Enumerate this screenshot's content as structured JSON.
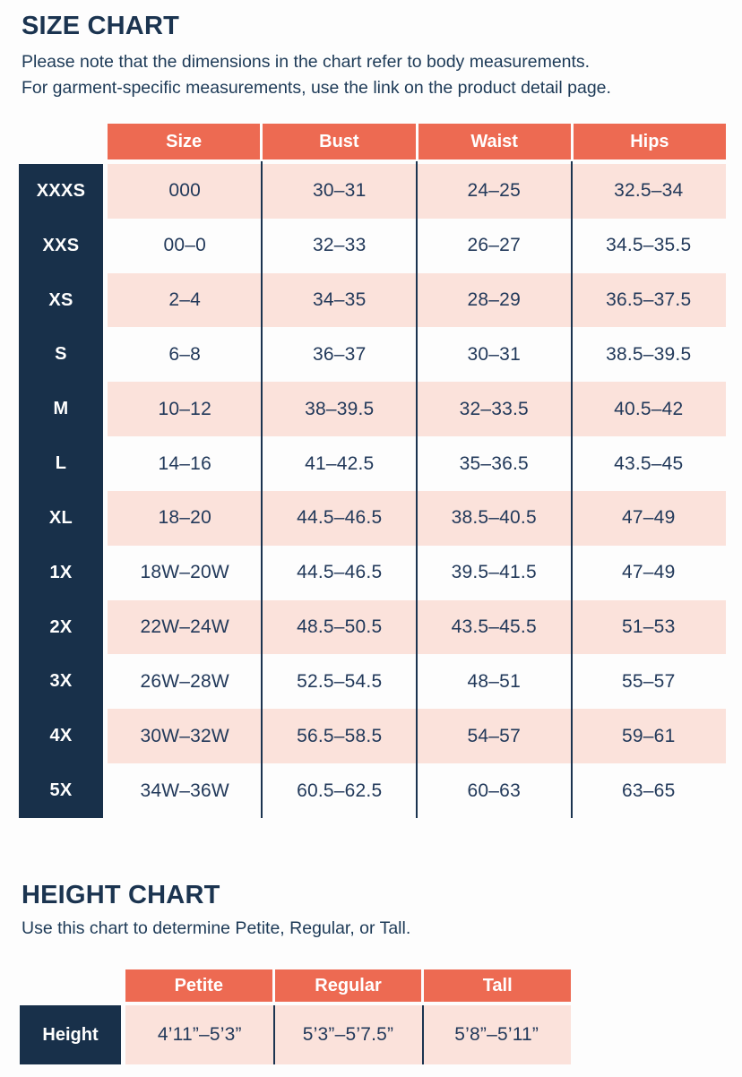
{
  "colors": {
    "header_orange": "#ED6A52",
    "label_navy": "#18304A",
    "row_pink": "#FBE2DB",
    "text_navy": "#1B3450",
    "header_text": "#FFFFFF"
  },
  "size_chart": {
    "title": "SIZE CHART",
    "note_line1": "Please note that the dimensions in the chart refer to body measurements.",
    "note_line2": "For garment-specific measurements, use the link on the product detail page.",
    "columns": [
      "Size",
      "Bust",
      "Waist",
      "Hips"
    ],
    "rows": [
      {
        "label": "XXXS",
        "size": "000",
        "bust": "30–31",
        "waist": "24–25",
        "hips": "32.5–34"
      },
      {
        "label": "XXS",
        "size": "00–0",
        "bust": "32–33",
        "waist": "26–27",
        "hips": "34.5–35.5"
      },
      {
        "label": "XS",
        "size": "2–4",
        "bust": "34–35",
        "waist": "28–29",
        "hips": "36.5–37.5"
      },
      {
        "label": "S",
        "size": "6–8",
        "bust": "36–37",
        "waist": "30–31",
        "hips": "38.5–39.5"
      },
      {
        "label": "M",
        "size": "10–12",
        "bust": "38–39.5",
        "waist": "32–33.5",
        "hips": "40.5–42"
      },
      {
        "label": "L",
        "size": "14–16",
        "bust": "41–42.5",
        "waist": "35–36.5",
        "hips": "43.5–45"
      },
      {
        "label": "XL",
        "size": "18–20",
        "bust": "44.5–46.5",
        "waist": "38.5–40.5",
        "hips": "47–49"
      },
      {
        "label": "1X",
        "size": "18W–20W",
        "bust": "44.5–46.5",
        "waist": "39.5–41.5",
        "hips": "47–49"
      },
      {
        "label": "2X",
        "size": "22W–24W",
        "bust": "48.5–50.5",
        "waist": "43.5–45.5",
        "hips": "51–53"
      },
      {
        "label": "3X",
        "size": "26W–28W",
        "bust": "52.5–54.5",
        "waist": "48–51",
        "hips": "55–57"
      },
      {
        "label": "4X",
        "size": "30W–32W",
        "bust": "56.5–58.5",
        "waist": "54–57",
        "hips": "59–61"
      },
      {
        "label": "5X",
        "size": "34W–36W",
        "bust": "60.5–62.5",
        "waist": "60–63",
        "hips": "63–65"
      }
    ]
  },
  "height_chart": {
    "title": "HEIGHT CHART",
    "note": "Use this chart to determine Petite, Regular, or Tall.",
    "columns": [
      "Petite",
      "Regular",
      "Tall"
    ],
    "row_label": "Height",
    "values": [
      "4’11”–5’3”",
      "5’3”–5’7.5”",
      "5’8”–5’11”"
    ]
  }
}
